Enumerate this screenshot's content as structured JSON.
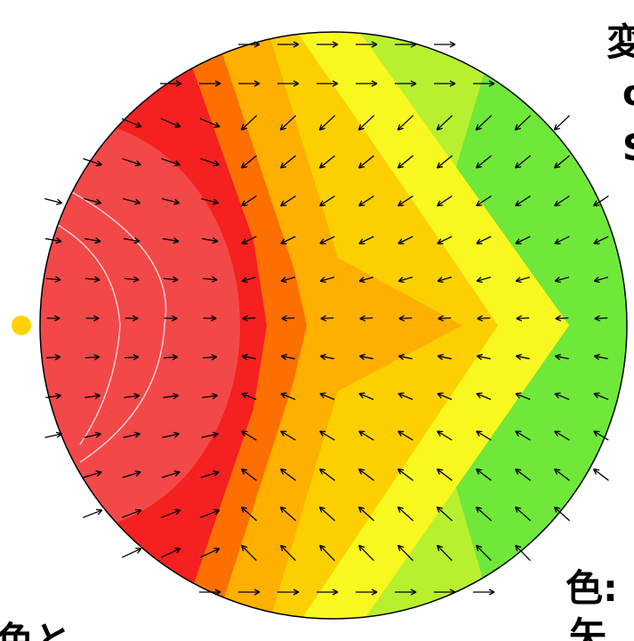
{
  "labels": {
    "top": [
      "変",
      "σ",
      "S"
    ],
    "bottom_right": [
      "色:",
      "矢"
    ],
    "bottom_left": "色と"
  }
}
